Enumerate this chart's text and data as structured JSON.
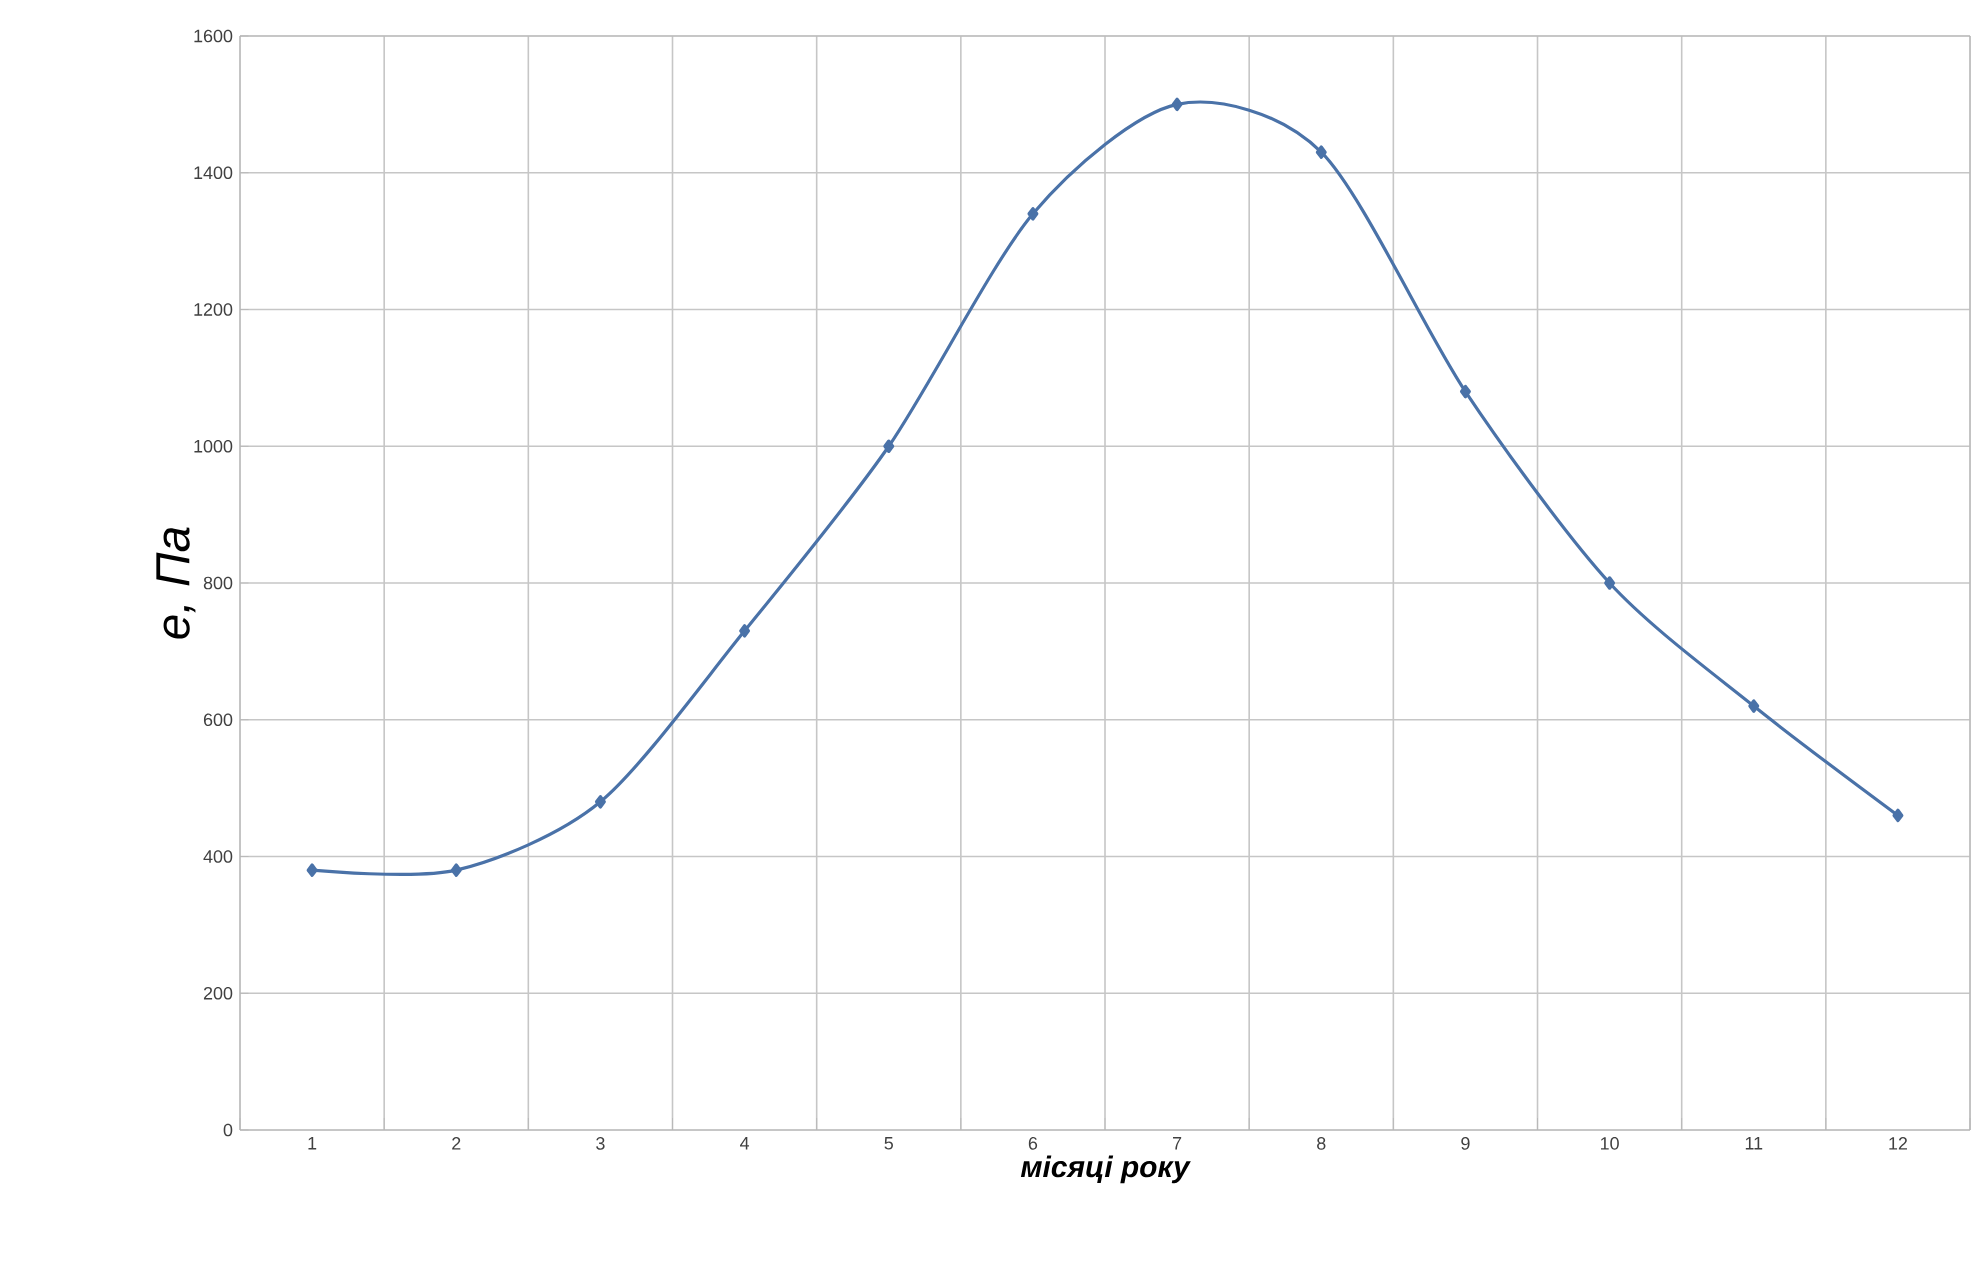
{
  "chart_data": {
    "type": "line",
    "xlabel": "місяці року",
    "ylabel": "e, Па",
    "categories": [
      "1",
      "2",
      "3",
      "4",
      "5",
      "6",
      "7",
      "8",
      "9",
      "10",
      "11",
      "12"
    ],
    "series": [
      {
        "color": "#4a72a8",
        "values": [
          380,
          380,
          480,
          730,
          1000,
          1340,
          1500,
          1430,
          1080,
          800,
          620,
          460
        ]
      }
    ],
    "ylim": [
      0,
      1600
    ],
    "yticks": [
      0,
      200,
      400,
      600,
      800,
      1000,
      1200,
      1400,
      1600
    ],
    "grid": true,
    "marker": "diamond",
    "line_style": "solid"
  }
}
